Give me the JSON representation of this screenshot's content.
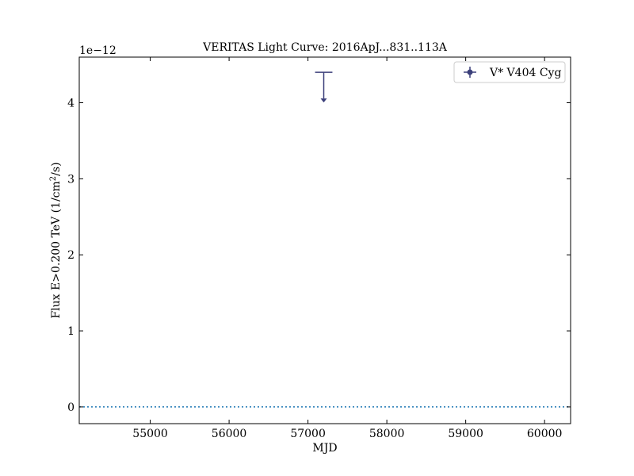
{
  "chart_data": {
    "type": "scatter",
    "title": "VERITAS Light Curve: 2016ApJ...831..113A",
    "xlabel": "MJD",
    "ylabel_main": "Flux E>0.200 TeV (1/cm",
    "ylabel_sup": "2",
    "ylabel_tail": "/s)",
    "offset_text": "1e−12",
    "xlim": [
      54100,
      60330
    ],
    "ylim": [
      -0.22,
      4.6
    ],
    "y_scale_factor": 1e-12,
    "x_ticks": [
      55000,
      56000,
      57000,
      58000,
      59000,
      60000
    ],
    "x_tick_labels": [
      "55000",
      "56000",
      "57000",
      "58000",
      "59000",
      "60000"
    ],
    "y_ticks": [
      0,
      1,
      2,
      3,
      4
    ],
    "y_tick_labels": [
      "0",
      "1",
      "2",
      "3",
      "4"
    ],
    "grid": false,
    "legend_position": "top-right",
    "zero_line": {
      "y": 0,
      "style": "dotted",
      "color": "#1f77b4"
    },
    "series": [
      {
        "name": "V* V404 Cyg",
        "color": "#3b3f7a",
        "points": [
          {
            "x": 57200,
            "x_err": 110,
            "y": 4.4,
            "upper_limit": true
          }
        ]
      }
    ]
  }
}
